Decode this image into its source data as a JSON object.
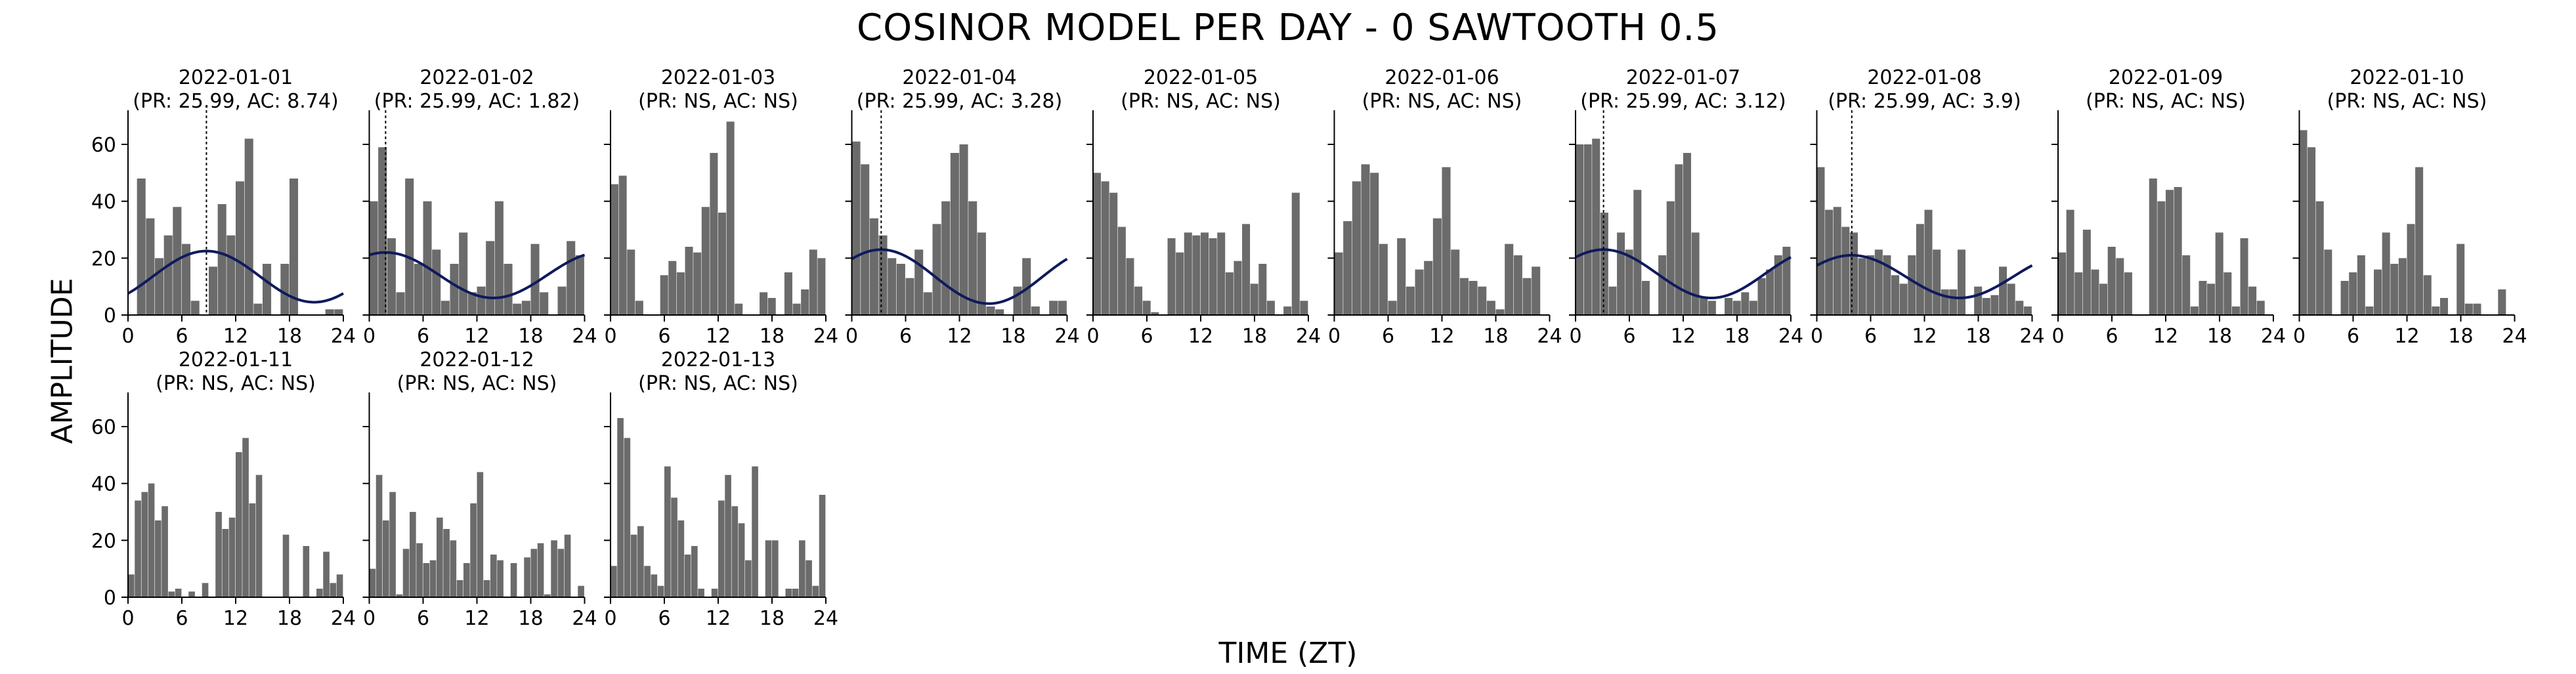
{
  "figure": {
    "title": "COSINOR MODEL PER DAY - 0 SAWTOOTH 0.5",
    "xlabel": "TIME (ZT)",
    "ylabel": "AMPLITUDE"
  },
  "style": {
    "bar_color": "#6b6b6b",
    "curve_color": "#0f1a5c",
    "axis_color": "#000000"
  },
  "chart_data": {
    "type": "bar",
    "layout": "small-multiples",
    "xlim": [
      0,
      24
    ],
    "ylim": [
      0,
      72
    ],
    "xticks": [
      0,
      6,
      12,
      18,
      24
    ],
    "yticks": [
      0,
      20,
      40,
      60
    ],
    "panels": [
      {
        "date": "2022-01-01",
        "stats": "(PR: 25.99, AC: 8.74)",
        "acrophase": 8.74,
        "cosinor": {
          "mesor": 13.5,
          "amplitude": 9.0
        },
        "bars": [
          0,
          48,
          34,
          20,
          28,
          38,
          25,
          5,
          0,
          17,
          39,
          28,
          47,
          62,
          4,
          18,
          0,
          18,
          48,
          0,
          0,
          0,
          2,
          2
        ]
      },
      {
        "date": "2022-01-02",
        "stats": "(PR: 25.99, AC: 1.82)",
        "acrophase": 1.82,
        "cosinor": {
          "mesor": 14.0,
          "amplitude": 8.0
        },
        "bars": [
          40,
          59,
          27,
          8,
          48,
          18,
          40,
          23,
          5,
          18,
          29,
          8,
          10,
          26,
          40,
          18,
          4,
          5,
          25,
          8,
          0,
          10,
          26,
          21
        ]
      },
      {
        "date": "2022-01-03",
        "stats": "(PR: NS, AC: NS)",
        "bars": [
          46,
          49,
          23,
          5,
          0,
          0,
          14,
          19,
          15,
          24,
          22,
          38,
          57,
          36,
          68,
          4,
          0,
          0,
          8,
          6,
          0,
          15,
          4,
          9,
          23,
          20
        ]
      },
      {
        "date": "2022-01-04",
        "stats": "(PR: 25.99, AC: 3.28)",
        "acrophase": 3.28,
        "cosinor": {
          "mesor": 13.5,
          "amplitude": 9.5
        },
        "bars": [
          61,
          53,
          34,
          28,
          20,
          18,
          13,
          23,
          8,
          32,
          40,
          57,
          60,
          40,
          29,
          3,
          2,
          0,
          10,
          20,
          3,
          0,
          5,
          5
        ]
      },
      {
        "date": "2022-01-05",
        "stats": "(PR: NS, AC: NS)",
        "bars": [
          50,
          47,
          43,
          31,
          20,
          10,
          5,
          1,
          0,
          27,
          22,
          29,
          28,
          29,
          27,
          29,
          15,
          19,
          32,
          11,
          18,
          5,
          0,
          3,
          43,
          5
        ]
      },
      {
        "date": "2022-01-06",
        "stats": "(PR: NS, AC: NS)",
        "bars": [
          22,
          33,
          47,
          53,
          50,
          25,
          5,
          27,
          10,
          16,
          19,
          34,
          52,
          23,
          13,
          12,
          10,
          5,
          2,
          25,
          21,
          13,
          17,
          0
        ]
      },
      {
        "date": "2022-01-07",
        "stats": "(PR: 25.99, AC: 3.12)",
        "acrophase": 3.12,
        "cosinor": {
          "mesor": 14.5,
          "amplitude": 8.5
        },
        "bars": [
          60,
          60,
          62,
          36,
          10,
          29,
          23,
          44,
          12,
          0,
          21,
          40,
          53,
          57,
          29,
          6,
          5,
          0,
          6,
          5,
          8,
          5,
          13,
          16,
          21,
          24
        ]
      },
      {
        "date": "2022-01-08",
        "stats": "(PR: 25.99, AC: 3.9)",
        "acrophase": 3.9,
        "cosinor": {
          "mesor": 13.5,
          "amplitude": 7.5
        },
        "bars": [
          52,
          37,
          38,
          31,
          29,
          20,
          21,
          23,
          21,
          14,
          11,
          21,
          32,
          37,
          23,
          9,
          9,
          23,
          0,
          10,
          6,
          7,
          17,
          11,
          5,
          3
        ]
      },
      {
        "date": "2022-01-09",
        "stats": "(PR: NS, AC: NS)",
        "bars": [
          22,
          37,
          15,
          30,
          16,
          11,
          24,
          20,
          15,
          0,
          0,
          48,
          40,
          44,
          45,
          21,
          3,
          12,
          11,
          29,
          15,
          3,
          27,
          10,
          5,
          0
        ]
      },
      {
        "date": "2022-01-10",
        "stats": "(PR: NS, AC: NS)",
        "bars": [
          65,
          59,
          40,
          23,
          0,
          12,
          15,
          21,
          3,
          16,
          29,
          18,
          20,
          32,
          52,
          14,
          3,
          6,
          0,
          25,
          4,
          4,
          0,
          0,
          9,
          0
        ]
      },
      {
        "date": "2022-01-11",
        "stats": "(PR: NS, AC: NS)",
        "bars": [
          8,
          34,
          37,
          40,
          27,
          32,
          2,
          3,
          0,
          2,
          0,
          5,
          0,
          30,
          24,
          28,
          51,
          56,
          33,
          43,
          0,
          0,
          0,
          22,
          0,
          0,
          18,
          0,
          3,
          16,
          5,
          8
        ]
      },
      {
        "date": "2022-01-12",
        "stats": "(PR: NS, AC: NS)",
        "bars": [
          10,
          43,
          27,
          37,
          1,
          17,
          30,
          19,
          12,
          13,
          28,
          24,
          20,
          6,
          12,
          33,
          44,
          6,
          15,
          13,
          0,
          12,
          0,
          14,
          17,
          19,
          1,
          20,
          17,
          22,
          0,
          4
        ]
      },
      {
        "date": "2022-01-13",
        "stats": "(PR: NS, AC: NS)",
        "bars": [
          11,
          63,
          56,
          22,
          25,
          11,
          8,
          4,
          46,
          35,
          27,
          15,
          18,
          3,
          0,
          3,
          34,
          43,
          32,
          26,
          13,
          46,
          0,
          20,
          20,
          0,
          3,
          3,
          20,
          13,
          4,
          36
        ]
      }
    ]
  }
}
